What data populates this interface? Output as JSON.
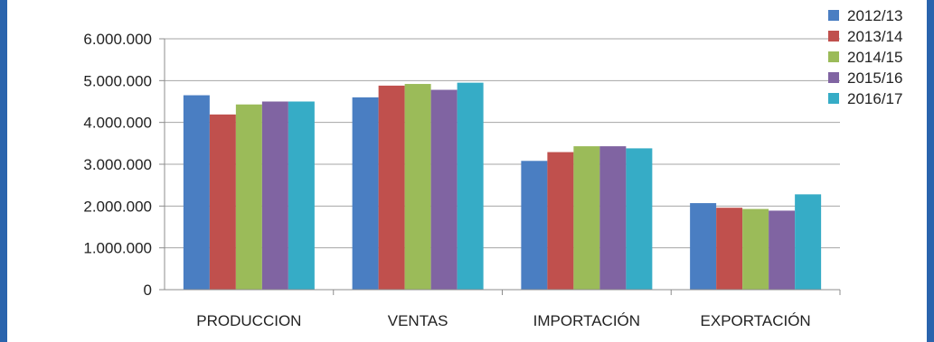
{
  "chart_data": {
    "type": "bar",
    "categories": [
      "PRODUCCION",
      "VENTAS",
      "IMPORTACIÓN",
      "EXPORTACIÓN"
    ],
    "series": [
      {
        "name": "2012/13",
        "color": "#4a7ec2",
        "values": [
          4650000,
          4600000,
          3080000,
          2070000
        ]
      },
      {
        "name": "2013/14",
        "color": "#c0504d",
        "values": [
          4190000,
          4880000,
          3290000,
          1960000
        ]
      },
      {
        "name": "2014/15",
        "color": "#9bbb59",
        "values": [
          4430000,
          4920000,
          3430000,
          1930000
        ]
      },
      {
        "name": "2015/16",
        "color": "#8064a2",
        "values": [
          4500000,
          4780000,
          3430000,
          1890000
        ]
      },
      {
        "name": "2016/17",
        "color": "#36acc6",
        "values": [
          4500000,
          4950000,
          3380000,
          2280000
        ]
      }
    ],
    "y_ticks": [
      "0",
      "1.000.000",
      "2.000.000",
      "3.000.000",
      "4.000.000",
      "5.000.000",
      "6.000.000"
    ],
    "ylim": [
      0,
      6000000
    ],
    "y_step": 1000000,
    "grid": true,
    "legend_position": "top-right",
    "title": "",
    "xlabel": "",
    "ylabel": ""
  }
}
